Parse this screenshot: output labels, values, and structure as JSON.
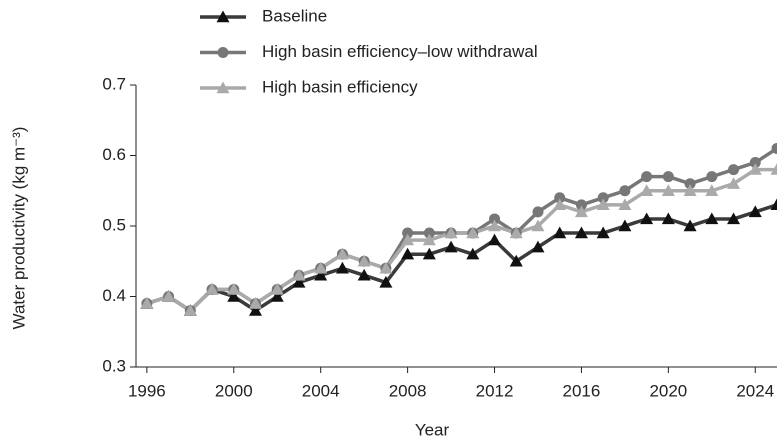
{
  "chart_data": {
    "type": "line",
    "y_label": "Water productivity (kg m⁻³)",
    "x_label": "Year",
    "x": [
      1996,
      1997,
      1998,
      1999,
      2000,
      2001,
      2002,
      2003,
      2004,
      2005,
      2006,
      2007,
      2008,
      2009,
      2010,
      2011,
      2012,
      2013,
      2014,
      2015,
      2016,
      2017,
      2018,
      2019,
      2020,
      2021,
      2022,
      2023,
      2024,
      2025
    ],
    "series": [
      {
        "name": "Baseline",
        "color": "#3a3a3a",
        "marker": "triangle",
        "marker_color": "#111111",
        "values": [
          0.39,
          0.4,
          0.38,
          0.41,
          0.4,
          0.38,
          0.4,
          0.42,
          0.43,
          0.44,
          0.43,
          0.42,
          0.46,
          0.46,
          0.47,
          0.46,
          0.48,
          0.45,
          0.47,
          0.49,
          0.49,
          0.49,
          0.5,
          0.51,
          0.51,
          0.5,
          0.51,
          0.51,
          0.52,
          0.53
        ]
      },
      {
        "name": "High basin efficiency–low withdrawal",
        "color": "#777777",
        "marker": "circle",
        "marker_color": "#777777",
        "values": [
          0.39,
          0.4,
          0.38,
          0.41,
          0.41,
          0.39,
          0.41,
          0.43,
          0.44,
          0.46,
          0.45,
          0.44,
          0.49,
          0.49,
          0.49,
          0.49,
          0.51,
          0.49,
          0.52,
          0.54,
          0.53,
          0.54,
          0.55,
          0.57,
          0.57,
          0.56,
          0.57,
          0.58,
          0.59,
          0.61
        ]
      },
      {
        "name": "High basin efficiency",
        "color": "#aaaaaa",
        "marker": "triangle",
        "marker_color": "#aaaaaa",
        "values": [
          0.39,
          0.4,
          0.38,
          0.41,
          0.41,
          0.39,
          0.41,
          0.43,
          0.44,
          0.46,
          0.45,
          0.44,
          0.48,
          0.48,
          0.49,
          0.49,
          0.5,
          0.49,
          0.5,
          0.53,
          0.52,
          0.53,
          0.53,
          0.55,
          0.55,
          0.55,
          0.55,
          0.56,
          0.58,
          0.58
        ]
      }
    ],
    "xlim": [
      1995.5,
      2025
    ],
    "xticks": [
      1996,
      2000,
      2004,
      2008,
      2012,
      2016,
      2020,
      2024
    ],
    "ylim": [
      0.3,
      0.7
    ],
    "yticks": [
      0.3,
      0.4,
      0.5,
      0.6,
      0.7
    ],
    "grid": false
  }
}
